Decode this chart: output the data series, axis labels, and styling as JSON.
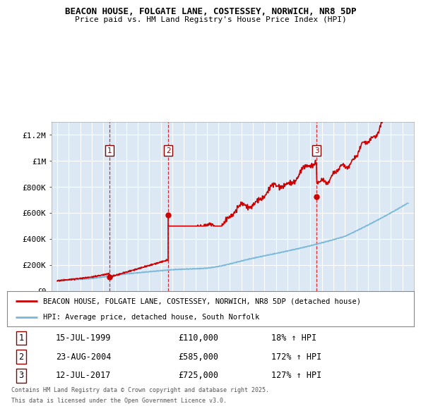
{
  "title": "BEACON HOUSE, FOLGATE LANE, COSTESSEY, NORWICH, NR8 5DP",
  "subtitle": "Price paid vs. HM Land Registry's House Price Index (HPI)",
  "background_color": "#dce9f5",
  "plot_bg_color": "#dce9f5",
  "ylim": [
    0,
    1300000
  ],
  "yticks": [
    0,
    200000,
    400000,
    600000,
    800000,
    1000000,
    1200000
  ],
  "ytick_labels": [
    "£0",
    "£200K",
    "£400K",
    "£600K",
    "£800K",
    "£1M",
    "£1.2M"
  ],
  "xlim_left": 1994.5,
  "xlim_right": 2026.0,
  "transactions": [
    {
      "date_num": 1999.54,
      "price": 110000,
      "label": "1"
    },
    {
      "date_num": 2004.64,
      "price": 585000,
      "label": "2"
    },
    {
      "date_num": 2017.53,
      "price": 725000,
      "label": "3"
    }
  ],
  "legend_house_label": "BEACON HOUSE, FOLGATE LANE, COSTESSEY, NORWICH, NR8 5DP (detached house)",
  "legend_hpi_label": "HPI: Average price, detached house, South Norfolk",
  "footer_line1": "Contains HM Land Registry data © Crown copyright and database right 2025.",
  "footer_line2": "This data is licensed under the Open Government Licence v3.0.",
  "table_rows": [
    {
      "num": "1",
      "date": "15-JUL-1999",
      "price": "£110,000",
      "change": "18% ↑ HPI"
    },
    {
      "num": "2",
      "date": "23-AUG-2004",
      "price": "£585,000",
      "change": "172% ↑ HPI"
    },
    {
      "num": "3",
      "date": "12-JUL-2017",
      "price": "£725,000",
      "change": "127% ↑ HPI"
    }
  ],
  "red_line_color": "#cc0000",
  "blue_line_color": "#7ab8d9",
  "dashed_line_color": "#cc0000",
  "grid_color": "#ffffff",
  "box_outline_color": "#8b0000"
}
